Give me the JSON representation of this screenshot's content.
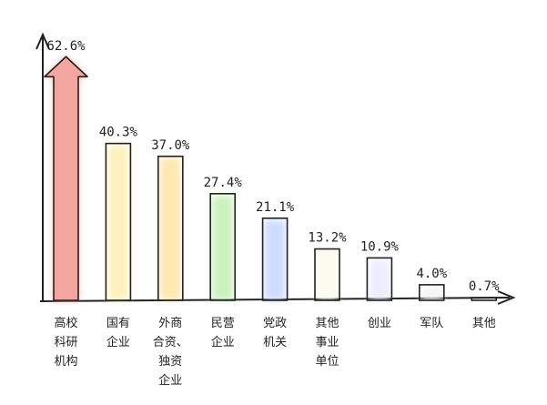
{
  "chart_data": {
    "type": "bar",
    "categories": [
      "高校\n科研\n机构",
      "国有\n企业",
      "外商\n合资、\n独资\n企业",
      "民营\n企业",
      "党政\n机关",
      "其他\n事业\n单位",
      "创业",
      "军队",
      "其他"
    ],
    "values": [
      62.6,
      40.3,
      37.0,
      27.4,
      21.1,
      13.2,
      10.9,
      4.0,
      0.7
    ],
    "value_labels": [
      "62.6%",
      "40.3%",
      "37.0%",
      "27.4%",
      "21.1%",
      "13.2%",
      "10.9%",
      "4.0%",
      "0.7%"
    ],
    "title": "",
    "xlabel": "",
    "ylabel": "",
    "ylim": [
      0,
      65
    ],
    "grid": false,
    "legend": "none",
    "bar_colors": [
      "#f3a5a0",
      "#fff0b8",
      "#fde4a8",
      "#c4f0b8",
      "#c8d8ff",
      "#fbfbee",
      "#e8ecff",
      "#f4f4f4",
      "#f4f4f4"
    ],
    "first_bar_style": "arrow"
  }
}
